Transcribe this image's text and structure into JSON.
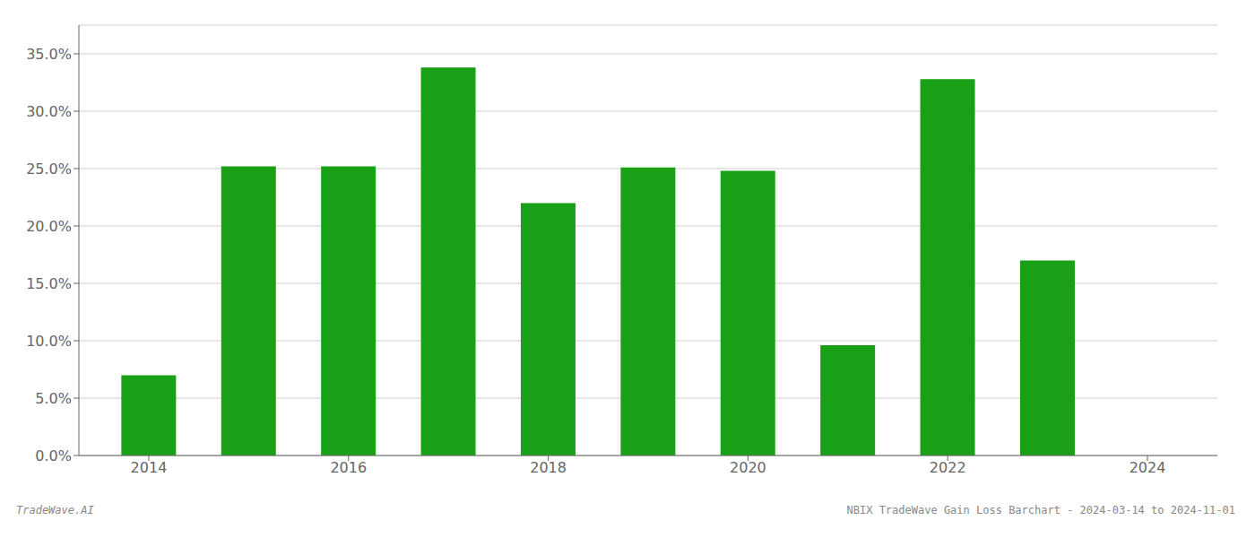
{
  "chart_data": {
    "type": "bar",
    "x": [
      2014,
      2015,
      2016,
      2017,
      2018,
      2019,
      2020,
      2021,
      2022,
      2023
    ],
    "values": [
      0.07,
      0.252,
      0.252,
      0.338,
      0.22,
      0.251,
      0.248,
      0.096,
      0.328,
      0.17
    ],
    "color": "#1aa016",
    "xlim": [
      2013.3,
      2024.7
    ],
    "xticks": [
      2014,
      2016,
      2018,
      2020,
      2022,
      2024
    ],
    "ylim": [
      0,
      0.375
    ],
    "yticks": [
      {
        "value": 0,
        "label": "0.0%"
      },
      {
        "value": 0.05,
        "label": "5.0%"
      },
      {
        "value": 0.1,
        "label": "10.0%"
      },
      {
        "value": 0.15,
        "label": "15.0%"
      },
      {
        "value": 0.2,
        "label": "20.0%"
      },
      {
        "value": 0.25,
        "label": "25.0%"
      },
      {
        "value": 0.3,
        "label": "30.0%"
      },
      {
        "value": 0.35,
        "label": "35.0%"
      }
    ],
    "grid": true,
    "annotations": [
      "TradeWave.AI",
      "NBIX TradeWave Gain Loss Barchart - 2024-03-14 to 2024-11-01"
    ]
  }
}
